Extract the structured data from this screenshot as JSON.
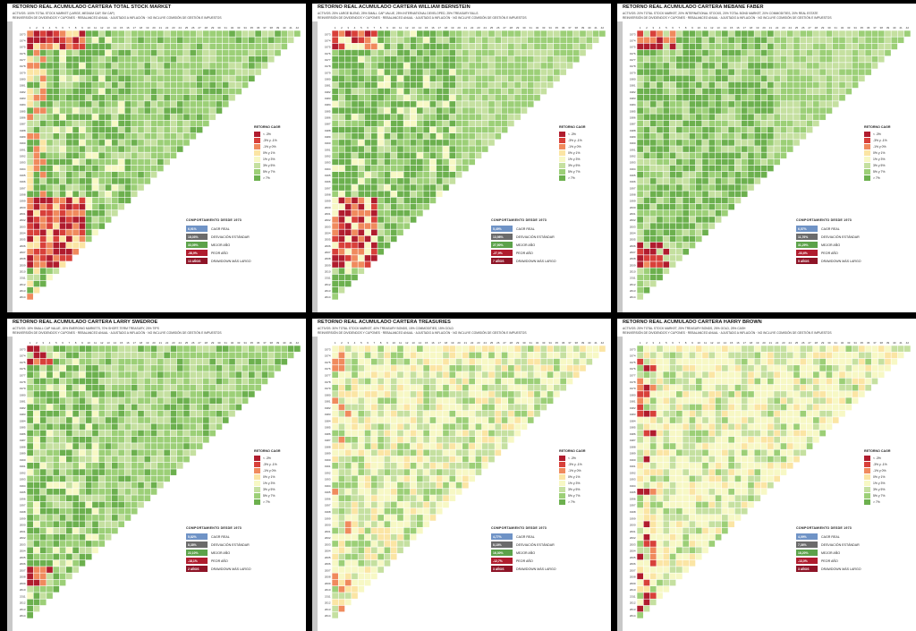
{
  "colors": {
    "neg_lt_-3": "#b01c2e",
    "neg_-3_-1": "#d8403a",
    "neg_-1_0": "#f08a5d",
    "pos_0_1": "#fbe5a4",
    "pos_1_3": "#f7f8c5",
    "pos_3_5": "#c5e0a0",
    "pos_5_7": "#9ccf77",
    "pos_gt_7": "#6cb04e",
    "cagr_box": "#6f93c6",
    "std_box": "#6b6b6b",
    "best_box": "#5ca24a",
    "worst_box": "#b01c2e",
    "dd_box": "#8e1427"
  },
  "legend": {
    "title": "RETORNO CAGR",
    "items": [
      "< -3%",
      "-3% y -1%",
      "-1% y 0%",
      "0% y 1%",
      "1% y 3%",
      "3% y 5%",
      "5% y 7%",
      "> 7%"
    ]
  },
  "stats_labels": {
    "title": "COMPORTAMIENTO DESDE 1973",
    "cagr": "CAGR REAL",
    "std": "DESVIACIÓN ESTÁNDAR",
    "best": "MEJOR AÑO",
    "worst": "PEOR AÑO",
    "dd": "DRAWDOWN MÁS LARGO"
  },
  "common": {
    "rebalance_note": "REINVERSIÓN DE DIVIDENDOS Y CUPONES · REBALANCEO ANUAL · AJUSTADO A INFLACIÓN · NO INCLUYE COMISIÓN DE GESTIÓN E IMPUESTOS",
    "axis_label": "AÑO DE COMIENZO DE LA INVERSIÓN",
    "top_axis_label": "NÚMERO DE AÑOS INVERTIDO",
    "year_labels": [
      "1973",
      "1974",
      "1975",
      "1976",
      "1977",
      "1978",
      "1979",
      "1980",
      "1981",
      "1982",
      "1983",
      "1984",
      "1985",
      "1986",
      "1987",
      "1988",
      "1989",
      "1990",
      "1991",
      "1992",
      "1993",
      "1994",
      "1995",
      "1996",
      "1997",
      "1998",
      "1999",
      "2000",
      "2001",
      "2002",
      "2003",
      "2004",
      "2005",
      "2006",
      "2007",
      "2008",
      "2009",
      "2010",
      "2011",
      "2012",
      "2013",
      "2014"
    ],
    "horizon_labels": [
      "1",
      "2",
      "3",
      "4",
      "5",
      "6",
      "7",
      "8",
      "9",
      "10",
      "11",
      "12",
      "13",
      "14",
      "15",
      "16",
      "17",
      "18",
      "19",
      "20",
      "21",
      "22",
      "23",
      "24",
      "25",
      "26",
      "27",
      "28",
      "29",
      "30",
      "31",
      "32",
      "33",
      "34",
      "35",
      "36",
      "37",
      "38",
      "39",
      "40",
      "41",
      "42"
    ]
  },
  "chart_data": [
    {
      "type": "heatmap",
      "title": "RETORNO REAL ACUMULADO CARTERA TOTAL STOCK MARKET",
      "assets": "ACTIVOS: 100% TOTAL STOCK MARKET (LARGE, MEDIUM CAP, SM CAP)",
      "stats": {
        "cagr": "6,91%",
        "std": "18,03%",
        "best": "33,05%",
        "worst": "-38,9%",
        "dd": "13 AÑOS"
      },
      "profile": "stock"
    },
    {
      "type": "heatmap",
      "title": "RETORNO REAL ACUMULADO CARTERA WILLIAM BERNSTEIN",
      "assets": "ACTIVOS: 25% LARGE BLEND, 25% SMALL CAP VALUE, 25% INTERNATIONAL DEVELOPED, 25% TREASURY BILLS",
      "stats": {
        "cagr": "5,49%",
        "std": "13,98%",
        "best": "27,50%",
        "worst": "-27,9%",
        "dd": "7 AÑOS"
      },
      "profile": "bernstein"
    },
    {
      "type": "heatmap",
      "title": "RETORNO REAL ACUMULADO CARTERA MEBANE FABER",
      "assets": "ACTIVOS: 20% TOTAL STOCK MARKET, 20% INTERNATIONAL STOCKS, 20% TOTAL BOND MARKET, 20% COMMODITIES, 20% REAL ESTATE",
      "stats": {
        "cagr": "6,57%",
        "std": "11,76%",
        "best": "31,29%",
        "worst": "-33,6%",
        "dd": "5 AÑOS"
      },
      "profile": "faber"
    },
    {
      "type": "heatmap",
      "title": "RETORNO REAL ACUMULADO CARTERA LARRY SWEDROE",
      "assets": "ACTIVOS: 15% SMALL CAP VALUE, 15% EMERGING MARKETS, 70% SHORT-TERM TREASURY, 20% TIPS",
      "stats": {
        "cagr": "5,82%",
        "std": "8,38%",
        "best": "22,10%",
        "worst": "-18,1%",
        "dd": "2 AÑOS"
      },
      "profile": "swedroe"
    },
    {
      "type": "heatmap",
      "title": "RETORNO REAL ACUMULADO CARTERA TREASURIES",
      "assets": "ACTIVOS: 30% TOTAL STOCK MARKET, 40% TREASURY BONDS, 15% COMMODITIES, 15% GOLD",
      "stats": {
        "cagr": "4,77%",
        "std": "8,18%",
        "best": "16,30%",
        "worst": "-12,7%",
        "dd": "3 AÑOS"
      },
      "profile": "treasuries"
    },
    {
      "type": "heatmap",
      "title": "RETORNO REAL ACUMULADO CARTERA HARRY BROWN",
      "assets": "ACTIVOS: 25% TOTAL STOCK MARKET, 25% TREASURY BONDS, 25% GOLD, 25% CASH",
      "stats": {
        "cagr": "4,09%",
        "std": "7,36%",
        "best": "18,20%",
        "worst": "-13,0%",
        "dd": "3 AÑOS"
      },
      "profile": "brown"
    }
  ]
}
